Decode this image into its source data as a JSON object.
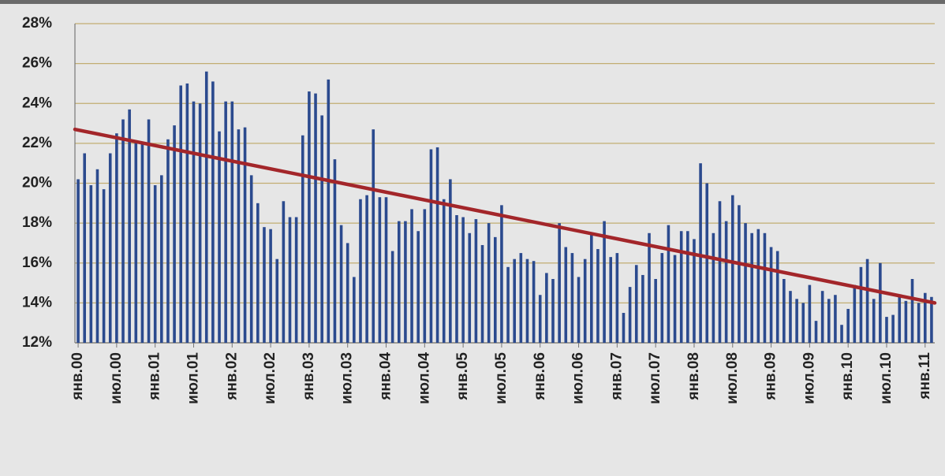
{
  "chart_data": {
    "type": "bar",
    "categories": [
      "янв.00",
      null,
      null,
      null,
      null,
      null,
      "июл.00",
      null,
      null,
      null,
      null,
      null,
      "янв.01",
      null,
      null,
      null,
      null,
      null,
      "июл.01",
      null,
      null,
      null,
      null,
      null,
      "янв.02",
      null,
      null,
      null,
      null,
      null,
      "июл.02",
      null,
      null,
      null,
      null,
      null,
      "янв.03",
      null,
      null,
      null,
      null,
      null,
      "июл.03",
      null,
      null,
      null,
      null,
      null,
      "янв.04",
      null,
      null,
      null,
      null,
      null,
      "июл.04",
      null,
      null,
      null,
      null,
      null,
      "янв.05",
      null,
      null,
      null,
      null,
      null,
      "июл.05",
      null,
      null,
      null,
      null,
      null,
      "янв.06",
      null,
      null,
      null,
      null,
      null,
      "июл.06",
      null,
      null,
      null,
      null,
      null,
      "янв.07",
      null,
      null,
      null,
      null,
      null,
      "июл.07",
      null,
      null,
      null,
      null,
      null,
      "янв.08",
      null,
      null,
      null,
      null,
      null,
      "июл.08",
      null,
      null,
      null,
      null,
      null,
      "янв.09",
      null,
      null,
      null,
      null,
      null,
      "июл.09",
      null,
      null,
      null,
      null,
      null,
      "янв.10",
      null,
      null,
      null,
      null,
      null,
      "июл.10",
      null,
      null,
      null,
      null,
      null,
      "янв.11",
      null
    ],
    "values": [
      20.2,
      21.5,
      19.9,
      20.7,
      19.7,
      21.5,
      22.5,
      23.2,
      23.7,
      22.1,
      22.0,
      23.2,
      19.9,
      20.4,
      22.2,
      22.9,
      24.9,
      25.0,
      24.1,
      24.0,
      25.6,
      25.1,
      22.6,
      24.1,
      24.1,
      22.7,
      22.8,
      20.4,
      19.0,
      17.8,
      17.7,
      16.2,
      19.1,
      18.3,
      18.3,
      22.4,
      24.6,
      24.5,
      23.4,
      25.2,
      21.2,
      17.9,
      17.0,
      15.3,
      19.2,
      19.4,
      22.7,
      19.3,
      19.3,
      16.6,
      18.1,
      18.1,
      18.7,
      17.6,
      18.7,
      21.7,
      21.8,
      19.2,
      20.2,
      18.4,
      18.3,
      17.5,
      18.2,
      16.9,
      18.0,
      17.3,
      18.9,
      15.8,
      16.2,
      16.5,
      16.2,
      16.1,
      14.4,
      15.5,
      15.2,
      18.0,
      16.8,
      16.5,
      15.3,
      16.2,
      17.4,
      16.7,
      18.1,
      16.3,
      16.5,
      13.5,
      14.8,
      15.9,
      15.4,
      17.5,
      15.2,
      16.5,
      17.9,
      16.4,
      17.6,
      17.6,
      17.2,
      21.0,
      20.0,
      17.5,
      19.1,
      18.1,
      19.4,
      18.9,
      18.0,
      17.5,
      17.7,
      17.5,
      16.8,
      16.6,
      15.2,
      14.6,
      14.2,
      14.0,
      14.9,
      13.1,
      14.6,
      14.2,
      14.4,
      12.9,
      13.7,
      14.9,
      15.8,
      16.2,
      14.2,
      16.0,
      13.3,
      13.4,
      14.3,
      14.1,
      15.2,
      14.0,
      14.5,
      14.3
    ],
    "color": "#2b4a8e",
    "trend": {
      "start": 22.7,
      "end": 14.0,
      "color": "#a3262a"
    },
    "ylim": [
      12,
      28
    ],
    "yticks": [
      {
        "value": 12,
        "label": "12%"
      },
      {
        "value": 14,
        "label": "14%"
      },
      {
        "value": 16,
        "label": "16%"
      },
      {
        "value": 18,
        "label": "18%"
      },
      {
        "value": 20,
        "label": "20%"
      },
      {
        "value": 22,
        "label": "22%"
      },
      {
        "value": 24,
        "label": "24%"
      },
      {
        "value": 26,
        "label": "26%"
      },
      {
        "value": 28,
        "label": "28%"
      }
    ],
    "grid": true
  }
}
